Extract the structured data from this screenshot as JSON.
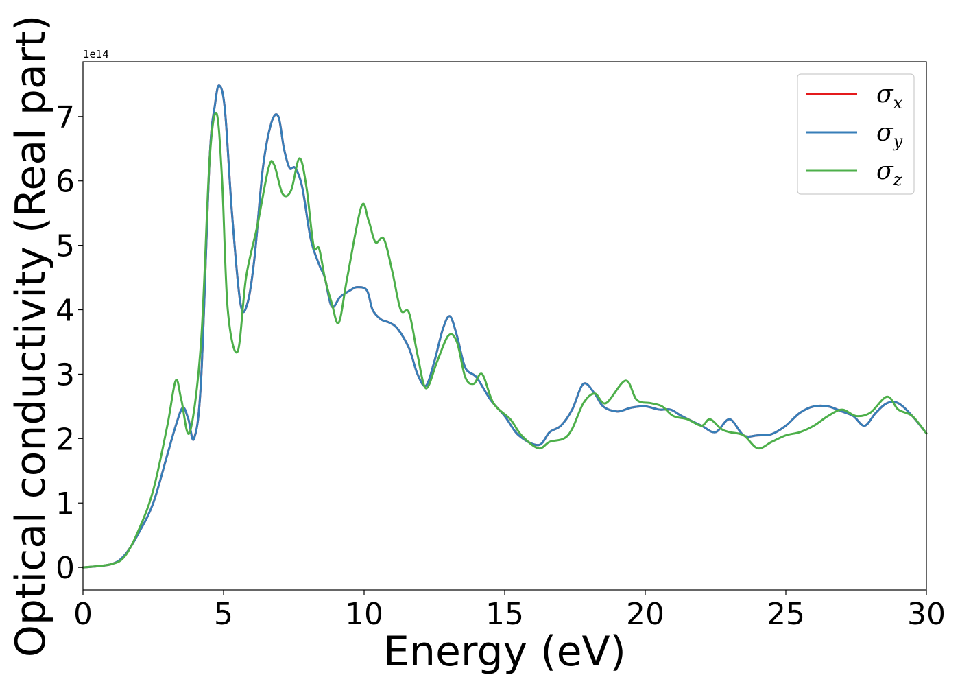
{
  "chart_data": {
    "type": "line",
    "xlabel": "Energy (eV)",
    "ylabel": "Optical conductivity (Real part)",
    "y_offset_label": "1e14",
    "xlim": [
      0,
      30
    ],
    "ylim": [
      -0.35,
      7.85
    ],
    "xticks": [
      0,
      5,
      10,
      15,
      20,
      25,
      30
    ],
    "yticks": [
      0,
      1,
      2,
      3,
      4,
      5,
      6,
      7
    ],
    "grid": false,
    "legend_position": "top-right",
    "series": [
      {
        "name": "σx",
        "symbol": "σ",
        "subscript": "x",
        "color": "#e41a1c",
        "x": [
          0,
          1,
          1.5,
          2,
          2.5,
          3,
          3.3,
          3.55,
          3.75,
          3.95,
          4.2,
          4.5,
          4.7,
          4.85,
          5.05,
          5.3,
          5.6,
          5.85,
          6.1,
          6.4,
          6.7,
          6.95,
          7.15,
          7.35,
          7.55,
          7.8,
          8.1,
          8.4,
          8.6,
          8.85,
          9.15,
          9.5,
          9.75,
          10.1,
          10.3,
          10.6,
          10.9,
          11.2,
          11.6,
          11.9,
          12.2,
          12.5,
          12.8,
          13.05,
          13.3,
          13.6,
          14,
          14.5,
          15,
          15.5,
          16.2,
          16.6,
          17,
          17.4,
          17.8,
          18.2,
          18.5,
          19,
          19.5,
          20,
          20.5,
          20.9,
          21.3,
          22,
          22.5,
          23,
          23.5,
          24,
          24.5,
          25,
          25.5,
          26,
          26.5,
          27,
          27.4,
          27.8,
          28.2,
          28.6,
          29,
          29.5,
          30
        ],
        "values": [
          0,
          0.05,
          0.2,
          0.55,
          1.0,
          1.75,
          2.2,
          2.48,
          2.3,
          2.0,
          2.9,
          6.3,
          7.2,
          7.48,
          7.1,
          5.5,
          4.1,
          4.1,
          4.8,
          6.2,
          6.9,
          7.0,
          6.5,
          6.2,
          6.2,
          5.9,
          5.1,
          4.7,
          4.5,
          4.05,
          4.2,
          4.3,
          4.35,
          4.3,
          4.0,
          3.85,
          3.8,
          3.7,
          3.4,
          3.0,
          2.82,
          3.2,
          3.7,
          3.9,
          3.6,
          3.1,
          2.95,
          2.6,
          2.35,
          2.05,
          1.9,
          2.1,
          2.2,
          2.45,
          2.85,
          2.7,
          2.5,
          2.42,
          2.48,
          2.5,
          2.45,
          2.45,
          2.35,
          2.2,
          2.1,
          2.3,
          2.05,
          2.05,
          2.07,
          2.2,
          2.4,
          2.5,
          2.5,
          2.42,
          2.35,
          2.2,
          2.4,
          2.55,
          2.55,
          2.35,
          2.08
        ]
      },
      {
        "name": "σy",
        "symbol": "σ",
        "subscript": "y",
        "color": "#377eb8",
        "x": [
          0,
          1,
          1.5,
          2,
          2.5,
          3,
          3.3,
          3.55,
          3.75,
          3.95,
          4.2,
          4.5,
          4.7,
          4.85,
          5.05,
          5.3,
          5.6,
          5.85,
          6.1,
          6.4,
          6.7,
          6.95,
          7.15,
          7.35,
          7.55,
          7.8,
          8.1,
          8.4,
          8.6,
          8.85,
          9.15,
          9.5,
          9.75,
          10.1,
          10.3,
          10.6,
          10.9,
          11.2,
          11.6,
          11.9,
          12.2,
          12.5,
          12.8,
          13.05,
          13.3,
          13.6,
          14,
          14.5,
          15,
          15.5,
          16.2,
          16.6,
          17,
          17.4,
          17.8,
          18.2,
          18.5,
          19,
          19.5,
          20,
          20.5,
          20.9,
          21.3,
          22,
          22.5,
          23,
          23.5,
          24,
          24.5,
          25,
          25.5,
          26,
          26.5,
          27,
          27.4,
          27.8,
          28.2,
          28.6,
          29,
          29.5,
          30
        ],
        "values": [
          0,
          0.05,
          0.2,
          0.55,
          1.0,
          1.75,
          2.2,
          2.48,
          2.3,
          2.0,
          2.9,
          6.3,
          7.2,
          7.48,
          7.1,
          5.5,
          4.1,
          4.1,
          4.8,
          6.2,
          6.9,
          7.0,
          6.5,
          6.2,
          6.2,
          5.9,
          5.1,
          4.7,
          4.5,
          4.05,
          4.2,
          4.3,
          4.35,
          4.3,
          4.0,
          3.85,
          3.8,
          3.7,
          3.4,
          3.0,
          2.82,
          3.2,
          3.7,
          3.9,
          3.6,
          3.1,
          2.95,
          2.6,
          2.35,
          2.05,
          1.9,
          2.1,
          2.2,
          2.45,
          2.85,
          2.7,
          2.5,
          2.42,
          2.48,
          2.5,
          2.45,
          2.45,
          2.35,
          2.2,
          2.1,
          2.3,
          2.05,
          2.05,
          2.07,
          2.2,
          2.4,
          2.5,
          2.5,
          2.42,
          2.35,
          2.2,
          2.4,
          2.55,
          2.55,
          2.35,
          2.08
        ]
      },
      {
        "name": "σz",
        "symbol": "σ",
        "subscript": "z",
        "color": "#4daf4a",
        "x": [
          0,
          1,
          1.5,
          2,
          2.5,
          3,
          3.3,
          3.5,
          3.8,
          4.2,
          4.5,
          4.75,
          4.95,
          5.15,
          5.5,
          5.8,
          6.2,
          6.6,
          6.8,
          7.1,
          7.4,
          7.7,
          7.95,
          8.2,
          8.4,
          8.6,
          8.85,
          9.1,
          9.4,
          9.9,
          10.15,
          10.4,
          10.7,
          11,
          11.3,
          11.6,
          11.9,
          12.2,
          12.6,
          13,
          13.3,
          13.6,
          13.9,
          14.2,
          14.6,
          15.2,
          15.6,
          16.2,
          16.6,
          17.1,
          17.4,
          17.8,
          18.2,
          18.6,
          19.3,
          19.7,
          20.2,
          20.6,
          21,
          21.5,
          22,
          22.3,
          22.7,
          23,
          23.5,
          24,
          24.5,
          25,
          25.5,
          26,
          26.5,
          27,
          27.5,
          28,
          28.6,
          29,
          29.5,
          30
        ],
        "values": [
          0,
          0.05,
          0.18,
          0.6,
          1.2,
          2.2,
          2.9,
          2.6,
          2.1,
          3.5,
          6.3,
          7.05,
          6.0,
          4.0,
          3.35,
          4.5,
          5.3,
          6.2,
          6.25,
          5.8,
          5.85,
          6.35,
          5.9,
          5.0,
          4.95,
          4.5,
          4.1,
          3.8,
          4.5,
          5.6,
          5.4,
          5.05,
          5.1,
          4.6,
          4.0,
          3.95,
          3.3,
          2.78,
          3.2,
          3.6,
          3.5,
          2.95,
          2.85,
          3.0,
          2.55,
          2.3,
          2.05,
          1.85,
          1.95,
          2.0,
          2.15,
          2.55,
          2.7,
          2.55,
          2.9,
          2.6,
          2.55,
          2.5,
          2.35,
          2.3,
          2.2,
          2.3,
          2.15,
          2.1,
          2.05,
          1.85,
          1.95,
          2.05,
          2.1,
          2.2,
          2.35,
          2.45,
          2.35,
          2.4,
          2.65,
          2.45,
          2.35,
          2.08
        ]
      }
    ]
  }
}
